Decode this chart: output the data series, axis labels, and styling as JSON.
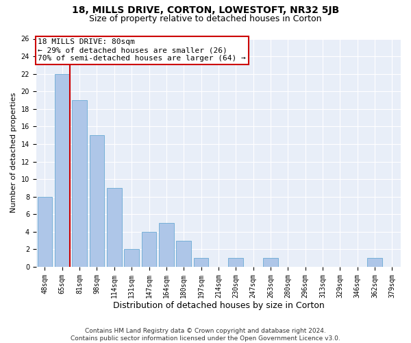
{
  "title1": "18, MILLS DRIVE, CORTON, LOWESTOFT, NR32 5JB",
  "title2": "Size of property relative to detached houses in Corton",
  "xlabel": "Distribution of detached houses by size in Corton",
  "ylabel": "Number of detached properties",
  "categories": [
    "48sqm",
    "65sqm",
    "81sqm",
    "98sqm",
    "114sqm",
    "131sqm",
    "147sqm",
    "164sqm",
    "180sqm",
    "197sqm",
    "214sqm",
    "230sqm",
    "247sqm",
    "263sqm",
    "280sqm",
    "296sqm",
    "313sqm",
    "329sqm",
    "346sqm",
    "362sqm",
    "379sqm"
  ],
  "values": [
    8,
    22,
    19,
    15,
    9,
    2,
    4,
    5,
    3,
    1,
    0,
    1,
    0,
    1,
    0,
    0,
    0,
    0,
    0,
    1,
    0
  ],
  "bar_color": "#aec6e8",
  "bar_edge_color": "#6aaad4",
  "highlight_bar_index": 1,
  "highlight_line_color": "#cc0000",
  "annotation_line1": "18 MILLS DRIVE: 80sqm",
  "annotation_line2": "← 29% of detached houses are smaller (26)",
  "annotation_line3": "70% of semi-detached houses are larger (64) →",
  "annotation_box_edgecolor": "#cc0000",
  "ylim_max": 26,
  "yticks": [
    0,
    2,
    4,
    6,
    8,
    10,
    12,
    14,
    16,
    18,
    20,
    22,
    24,
    26
  ],
  "footer1": "Contains HM Land Registry data © Crown copyright and database right 2024.",
  "footer2": "Contains public sector information licensed under the Open Government Licence v3.0.",
  "plot_bg_color": "#e8eef8",
  "title1_fontsize": 10,
  "title2_fontsize": 9,
  "xlabel_fontsize": 9,
  "ylabel_fontsize": 8,
  "tick_fontsize": 7,
  "annotation_fontsize": 8,
  "footer_fontsize": 6.5
}
